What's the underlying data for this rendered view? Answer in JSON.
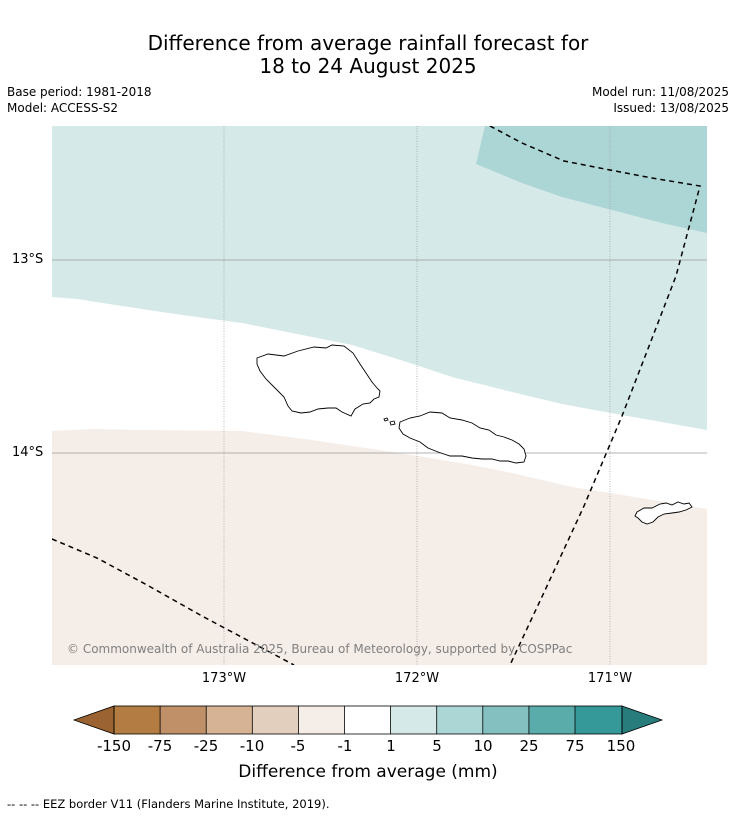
{
  "title": {
    "line1": "Difference from average rainfall forecast for",
    "line2": "18 to 24 August 2025"
  },
  "meta": {
    "base_period": "Base period: 1981-2018",
    "model": "Model: ACCESS-S2",
    "model_run": "Model run: 11/08/2025",
    "issued": "Issued: 13/08/2025"
  },
  "map": {
    "lat_labels": [
      "13°S",
      "14°S"
    ],
    "lon_labels": [
      "173°W",
      "172°W",
      "171°W"
    ],
    "credit": "© Commonwealth of Australia 2025, Bureau of Meteorology, supported by COSPPac",
    "colors": {
      "wet_light": "#d5e9e8",
      "wet_medium": "#acd6d5",
      "neutral": "#ffffff",
      "dry_light": "#f5ede8"
    }
  },
  "colorbar": {
    "title": "Difference from average (mm)",
    "labels": [
      "-150",
      "-75",
      "-25",
      "-10",
      "-5",
      "-1",
      "1",
      "5",
      "10",
      "25",
      "75",
      "150"
    ],
    "colors": [
      "#9b6331",
      "#b27c43",
      "#c09068",
      "#d5b394",
      "#e3cfbe",
      "#f5ede8",
      "#ffffff",
      "#d5e9e8",
      "#acd6d5",
      "#84c0bf",
      "#5aacab",
      "#359999",
      "#287c7c"
    ]
  },
  "footer": {
    "eez_note": "--  --  -- EEZ border V11 (Flanders Marine Institute, 2019)."
  }
}
